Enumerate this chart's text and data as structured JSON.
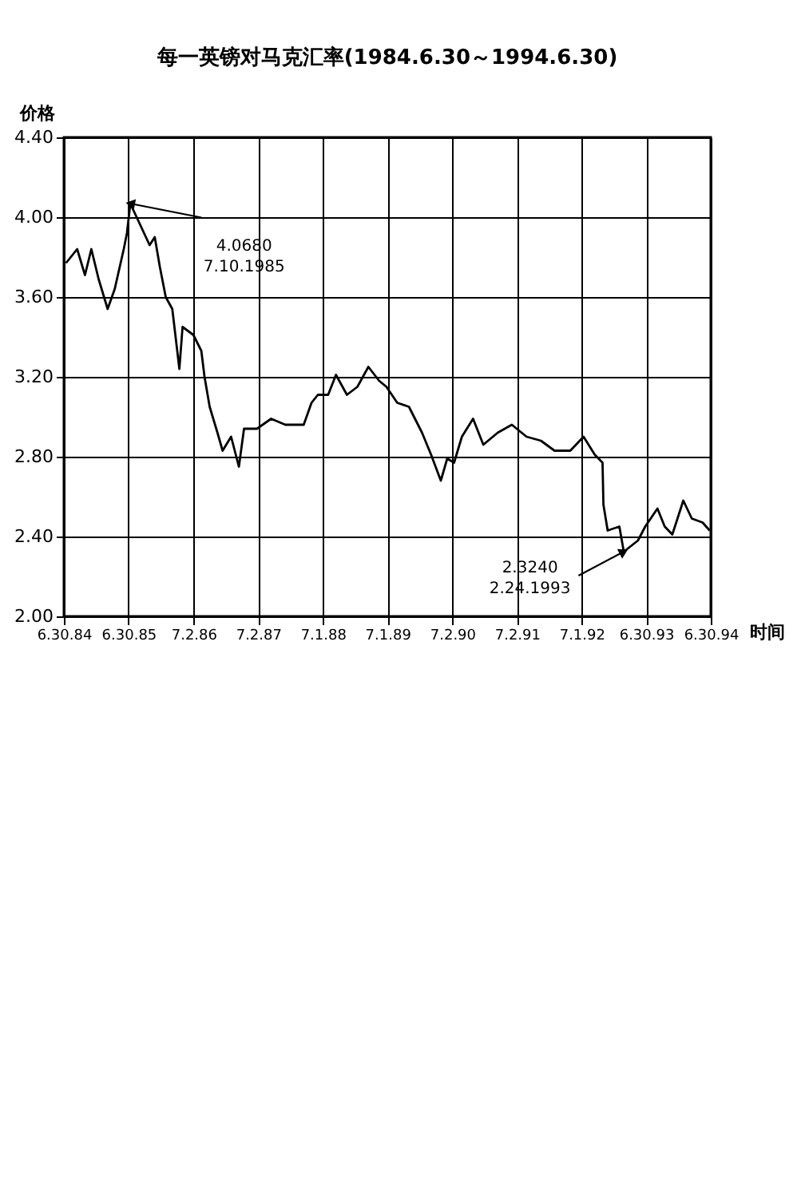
{
  "chart_data": {
    "type": "line",
    "title": "每一英镑对马克汇率(1984.6.30～1994.6.30)",
    "xlabel": "时间",
    "ylabel": "价格",
    "x": [
      "1984-07-12",
      "1984-09-13",
      "1984-10-27",
      "1984-12-02",
      "1985-01-12",
      "1985-03-04",
      "1985-04-13",
      "1985-06-03",
      "1985-06-21",
      "1985-07-10",
      "1985-10-27",
      "1985-11-25",
      "1985-12-24",
      "1986-01-26",
      "1986-03-04",
      "1986-04-13",
      "1986-05-01",
      "1986-07-01",
      "1986-08-15",
      "1986-09-02",
      "1986-10-01",
      "1986-11-14",
      "1986-12-13",
      "1987-01-30",
      "1987-03-15",
      "1987-04-13",
      "1987-06-25",
      "1987-09-13",
      "1987-12-02",
      "1988-03-15",
      "1988-04-28",
      "1988-06-03",
      "1988-07-31",
      "1988-09-13",
      "1988-11-14",
      "1989-01-12",
      "1989-03-15",
      "1989-05-15",
      "1989-06-25",
      "1989-08-25",
      "1989-10-30",
      "1990-01-12",
      "1990-03-04",
      "1990-04-28",
      "1990-06-03",
      "1990-07-12",
      "1990-08-25",
      "1990-10-27",
      "1990-12-24",
      "1991-03-15",
      "1991-06-03",
      "1991-08-25",
      "1991-11-14",
      "1992-01-30",
      "1992-04-28",
      "1992-07-12",
      "1992-09-13",
      "1992-10-27",
      "1992-11-01",
      "1992-11-25",
      "1993-01-30",
      "1993-02-24",
      "1993-05-15",
      "1993-06-25",
      "1993-09-02",
      "1993-10-13",
      "1993-11-25",
      "1994-01-26",
      "1994-03-15",
      "1994-05-15",
      "1994-06-24"
    ],
    "series": [
      {
        "color": "#000000",
        "values": [
          3.77,
          3.84,
          3.71,
          3.84,
          3.69,
          3.54,
          3.64,
          3.84,
          3.92,
          4.068,
          3.86,
          3.9,
          3.75,
          3.6,
          3.54,
          3.24,
          3.45,
          3.41,
          3.33,
          3.2,
          3.05,
          2.92,
          2.83,
          2.9,
          2.75,
          2.94,
          2.94,
          2.99,
          2.96,
          2.96,
          3.07,
          3.11,
          3.11,
          3.21,
          3.11,
          3.15,
          3.25,
          3.18,
          3.15,
          3.07,
          3.05,
          2.92,
          2.81,
          2.68,
          2.79,
          2.77,
          2.9,
          2.99,
          2.86,
          2.92,
          2.96,
          2.9,
          2.88,
          2.83,
          2.83,
          2.9,
          2.81,
          2.77,
          2.56,
          2.43,
          2.45,
          2.324,
          2.38,
          2.45,
          2.54,
          2.45,
          2.41,
          2.58,
          2.49,
          2.47,
          2.43
        ]
      }
    ],
    "xlim": [
      "1984-06-30",
      "1994-06-30"
    ],
    "xticks": [
      {
        "value": "1984-06-30",
        "label": "6.30.84"
      },
      {
        "value": "1985-06-30",
        "label": "6.30.85"
      },
      {
        "value": "1986-07-02",
        "label": "7.2.86"
      },
      {
        "value": "1987-07-02",
        "label": "7.2.87"
      },
      {
        "value": "1988-07-01",
        "label": "7.1.88"
      },
      {
        "value": "1989-07-01",
        "label": "7.1.89"
      },
      {
        "value": "1990-07-02",
        "label": "7.2.90"
      },
      {
        "value": "1991-07-02",
        "label": "7.2.91"
      },
      {
        "value": "1992-07-01",
        "label": "7.1.92"
      },
      {
        "value": "1993-06-30",
        "label": "6.30.93"
      },
      {
        "value": "1994-06-30",
        "label": "6.30.94"
      }
    ],
    "ylim": [
      2.0,
      4.4
    ],
    "yticks": [
      {
        "value": 2.0,
        "label": "2.00"
      },
      {
        "value": 2.4,
        "label": "2.40"
      },
      {
        "value": 2.8,
        "label": "2.80"
      },
      {
        "value": 3.2,
        "label": "3.20"
      },
      {
        "value": 3.6,
        "label": "3.60"
      },
      {
        "value": 4.0,
        "label": "4.00"
      },
      {
        "value": 4.4,
        "label": "4.40"
      }
    ],
    "grid": true,
    "annotations": [
      {
        "text": "4.0680\n7.10.1985",
        "x": "1985-07-10",
        "y": 4.068
      },
      {
        "text": "2.3240\n2.24.1993",
        "x": "1993-02-24",
        "y": 2.324
      }
    ]
  }
}
